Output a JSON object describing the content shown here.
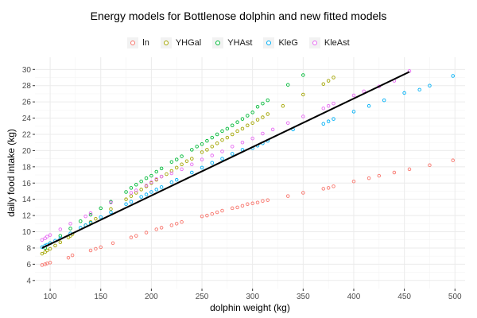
{
  "chart_data": {
    "type": "scatter",
    "title": "Energy models for Bottlenose dolphin and new fitted models",
    "xlabel": "dolphin weight (kg)",
    "ylabel": "daily food intake (kg)",
    "xlim": [
      85,
      510
    ],
    "ylim": [
      3,
      31.5
    ],
    "x_ticks": [
      100,
      150,
      200,
      250,
      300,
      350,
      400,
      450,
      500
    ],
    "y_ticks": [
      4,
      6,
      8,
      10,
      12,
      14,
      16,
      18,
      20,
      22,
      24,
      26,
      28,
      30
    ],
    "grid": true,
    "legend_position": "top",
    "series": [
      {
        "name": "ln",
        "color": "#F8766D",
        "x": [
          92,
          95,
          97,
          100,
          118,
          122,
          140,
          145,
          150,
          162,
          180,
          185,
          195,
          205,
          210,
          220,
          225,
          230,
          250,
          255,
          260,
          265,
          270,
          280,
          285,
          290,
          295,
          300,
          305,
          310,
          315,
          335,
          350,
          370,
          375,
          380,
          400,
          415,
          425,
          440,
          455,
          475,
          498
        ],
        "y": [
          5.9,
          6.0,
          6.1,
          6.2,
          6.8,
          7.1,
          7.7,
          7.9,
          8.1,
          8.6,
          9.3,
          9.5,
          9.9,
          10.3,
          10.5,
          10.8,
          11.0,
          11.2,
          11.9,
          12.0,
          12.2,
          12.4,
          12.6,
          12.9,
          13.0,
          13.2,
          13.4,
          13.5,
          13.6,
          13.8,
          13.9,
          14.4,
          14.8,
          15.3,
          15.4,
          15.6,
          16.2,
          16.6,
          16.9,
          17.3,
          17.7,
          18.2,
          18.8
        ]
      },
      {
        "name": "YHGal",
        "color": "#A3A500",
        "x": [
          92,
          95,
          97,
          100,
          105,
          110,
          118,
          120,
          122,
          135,
          140,
          145,
          160,
          175,
          180,
          185,
          190,
          195,
          200,
          205,
          210,
          215,
          220,
          225,
          230,
          235,
          240,
          250,
          255,
          260,
          265,
          270,
          275,
          280,
          285,
          290,
          295,
          300,
          305,
          310,
          315,
          330,
          350,
          370,
          375,
          380
        ],
        "y": [
          7.3,
          7.5,
          7.7,
          7.9,
          8.3,
          8.7,
          9.3,
          9.5,
          9.7,
          10.8,
          11.2,
          11.6,
          12.8,
          14.0,
          14.4,
          14.8,
          15.2,
          15.6,
          16.0,
          16.4,
          16.8,
          17.1,
          17.5,
          17.9,
          18.3,
          18.7,
          19.0,
          19.8,
          20.1,
          20.5,
          20.9,
          21.3,
          21.6,
          22.0,
          22.4,
          22.7,
          23.1,
          23.4,
          23.8,
          24.1,
          24.5,
          25.5,
          26.9,
          28.2,
          28.6,
          29.0
        ]
      },
      {
        "name": "YHAst",
        "color": "#00BA38",
        "x": [
          95,
          100,
          110,
          120,
          130,
          140,
          150,
          160,
          175,
          180,
          185,
          190,
          195,
          200,
          205,
          210,
          220,
          225,
          230,
          240,
          245,
          250,
          255,
          260,
          265,
          270,
          275,
          280,
          285,
          290,
          295,
          300,
          305,
          310,
          315,
          335,
          350
        ],
        "y": [
          8.0,
          8.6,
          9.5,
          10.4,
          11.3,
          12.1,
          12.9,
          13.7,
          14.9,
          15.4,
          15.8,
          16.2,
          16.6,
          16.9,
          17.4,
          17.8,
          18.6,
          18.9,
          19.3,
          20.1,
          20.5,
          20.8,
          21.2,
          21.6,
          22.0,
          22.4,
          22.7,
          23.1,
          23.5,
          23.9,
          24.3,
          24.7,
          25.4,
          25.8,
          26.2,
          28.1,
          29.3
        ]
      },
      {
        "name": "KleG",
        "color": "#00B0F6",
        "x": [
          92,
          95,
          97,
          100,
          105,
          110,
          120,
          130,
          135,
          140,
          150,
          160,
          175,
          180,
          190,
          195,
          200,
          205,
          210,
          220,
          225,
          240,
          250,
          260,
          270,
          280,
          290,
          300,
          305,
          310,
          315,
          340,
          370,
          375,
          380,
          400,
          415,
          430,
          450,
          465,
          475,
          498
        ],
        "y": [
          8.1,
          8.3,
          8.4,
          8.6,
          8.9,
          9.2,
          9.8,
          10.5,
          10.8,
          11.1,
          11.8,
          12.4,
          13.4,
          13.7,
          14.3,
          14.6,
          14.9,
          15.2,
          15.5,
          16.1,
          16.4,
          17.3,
          17.9,
          18.5,
          19.0,
          19.6,
          20.1,
          20.3,
          20.6,
          20.9,
          21.2,
          22.6,
          23.3,
          23.6,
          23.9,
          24.8,
          25.5,
          26.2,
          27.1,
          27.5,
          28.0,
          29.2
        ]
      },
      {
        "name": "KleAst",
        "color": "#E76BF3",
        "x": [
          92,
          95,
          97,
          100,
          110,
          120,
          135,
          140,
          160,
          180,
          185,
          195,
          200,
          205,
          210,
          220,
          230,
          240,
          250,
          260,
          270,
          280,
          290,
          300,
          310,
          320,
          335,
          350,
          370,
          375,
          380,
          400,
          410,
          425,
          440,
          455
        ],
        "y": [
          9.0,
          9.2,
          9.4,
          9.6,
          10.3,
          11.0,
          11.9,
          12.3,
          13.6,
          14.8,
          15.1,
          15.7,
          16.1,
          16.5,
          16.8,
          17.2,
          17.7,
          18.3,
          18.9,
          19.4,
          19.9,
          20.5,
          21.0,
          21.5,
          22.1,
          22.6,
          23.4,
          24.2,
          25.2,
          25.5,
          25.8,
          26.8,
          27.3,
          27.9,
          28.6,
          29.8
        ]
      }
    ],
    "fit_line": {
      "color": "#000000",
      "x": [
        92,
        455
      ],
      "y": [
        8.0,
        29.7
      ]
    }
  }
}
